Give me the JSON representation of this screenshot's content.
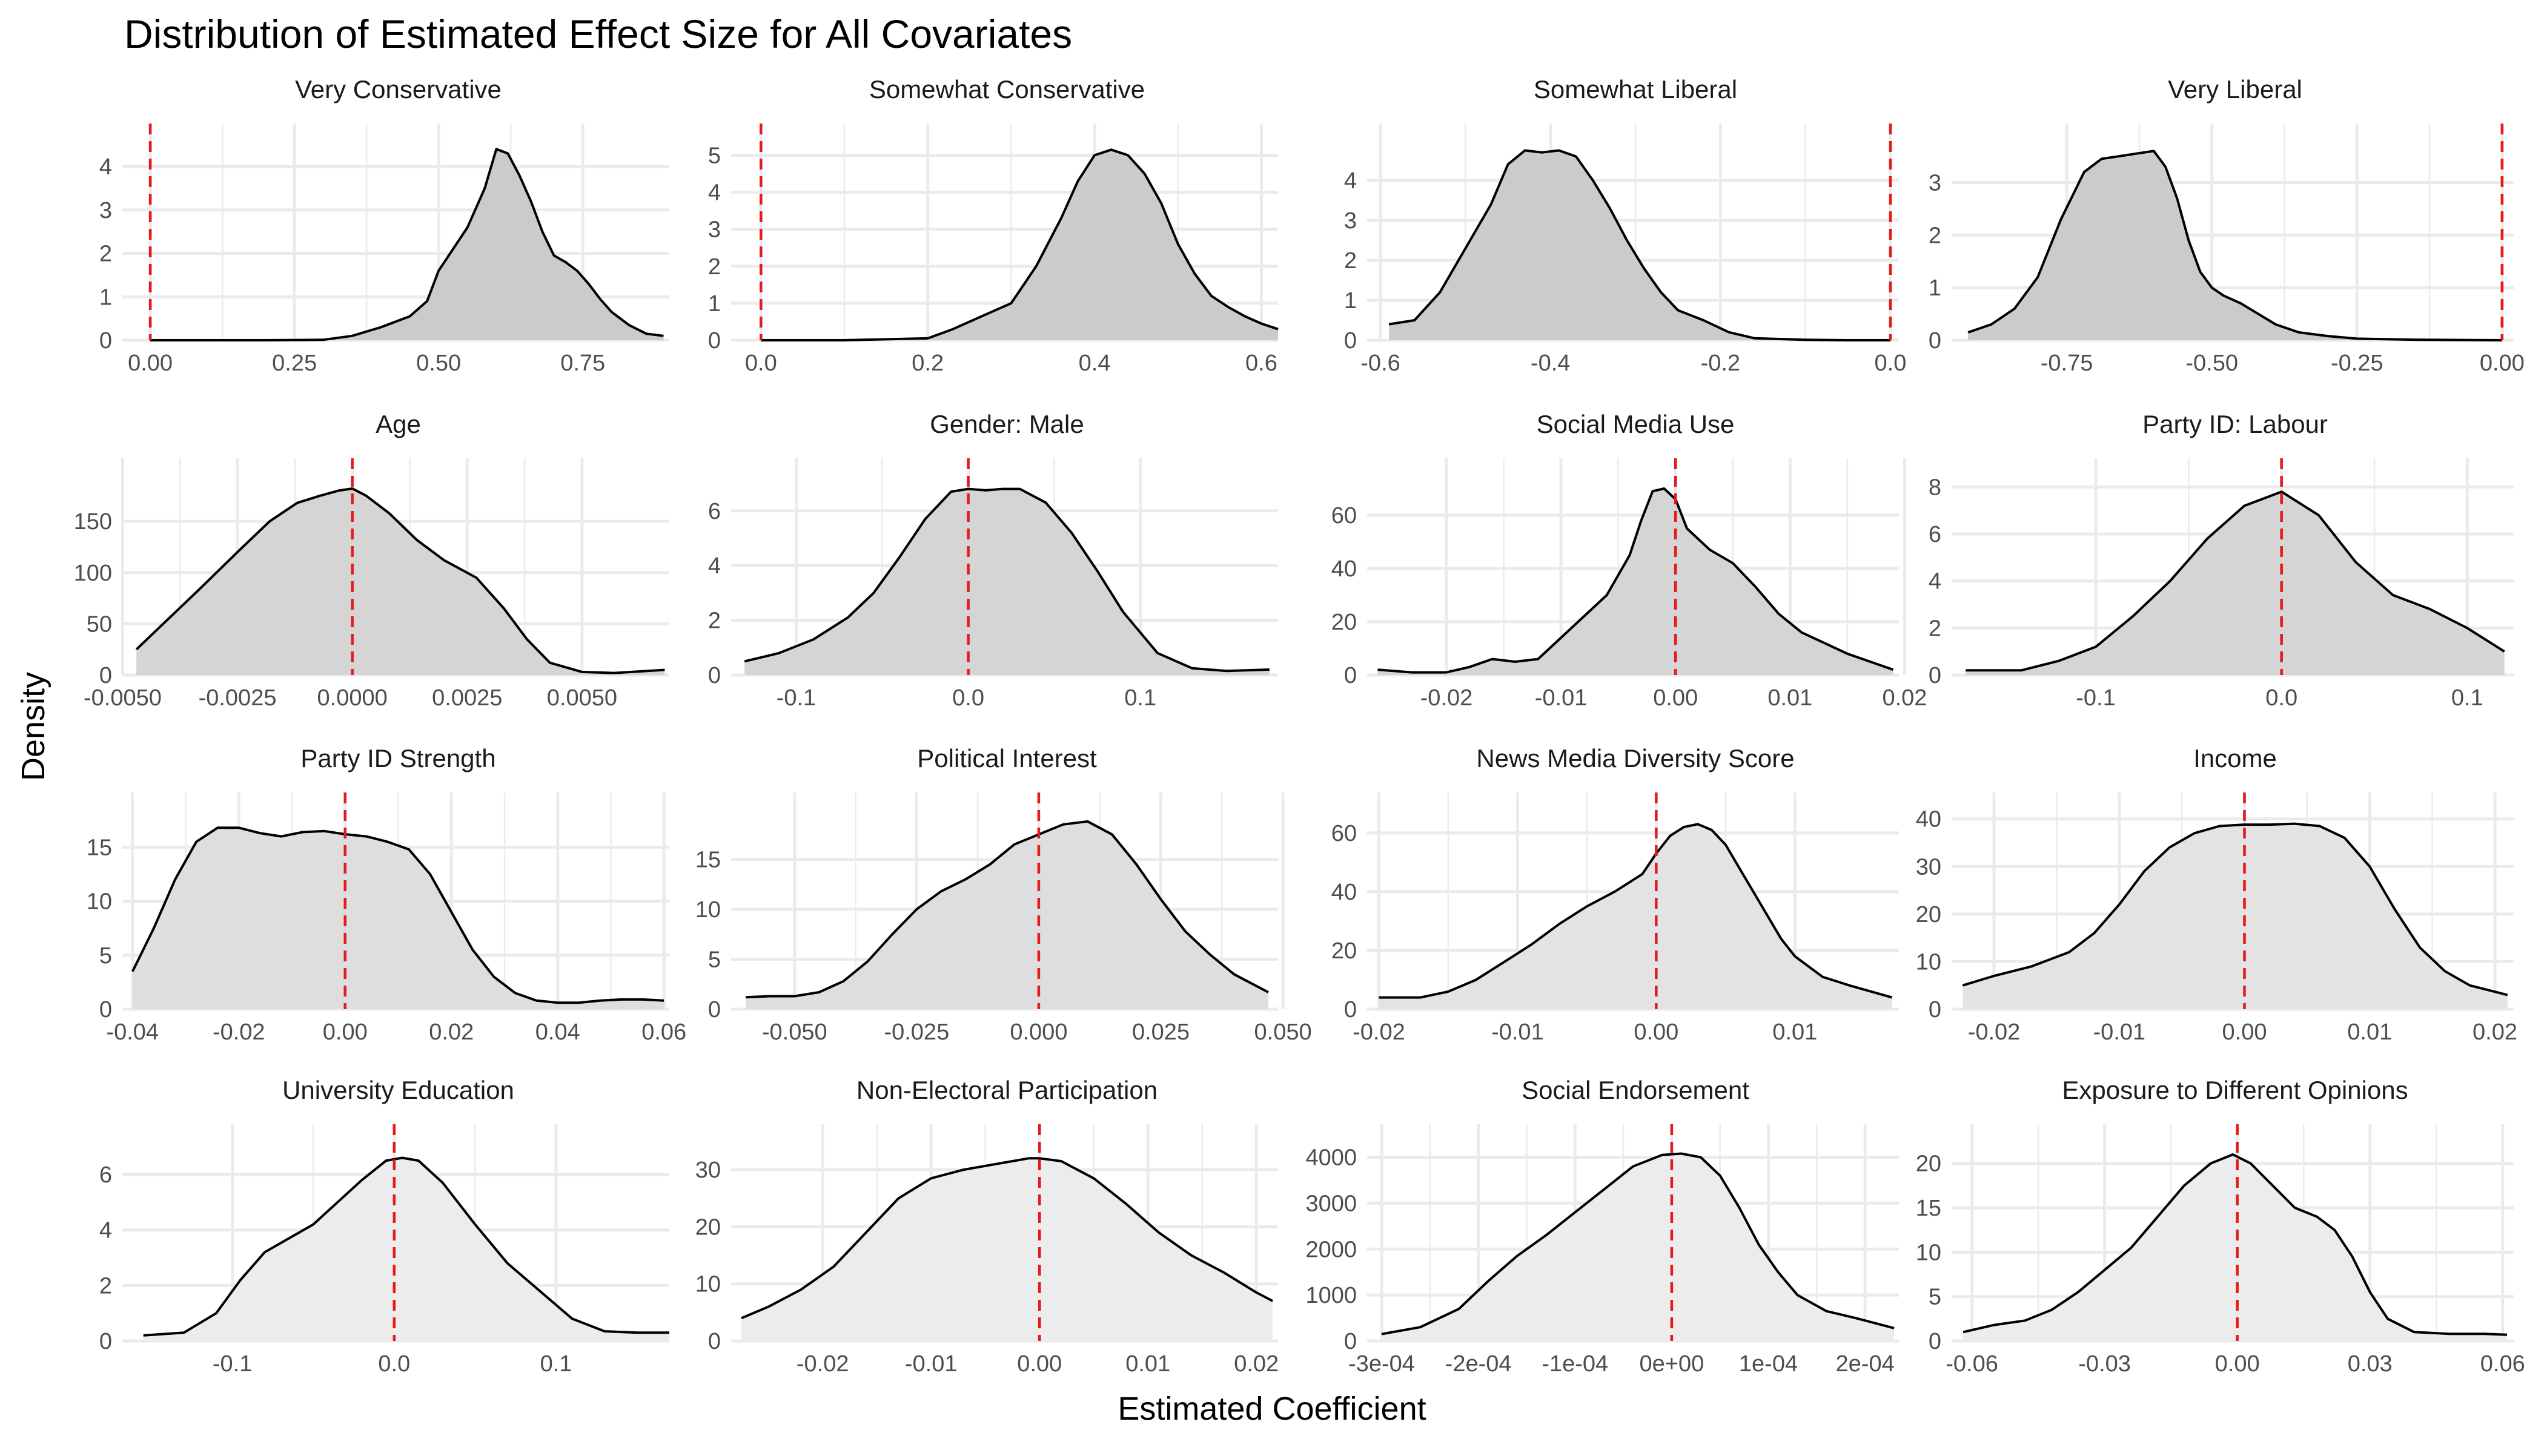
{
  "figure": {
    "title": "Distribution of Estimated Effect Size for All Covariates",
    "xlabel": "Estimated Coefficient",
    "ylabel": "Density",
    "colors": {
      "line": "#000000",
      "reference_line": "#e41a1c",
      "grid": "#ebebeb"
    }
  },
  "chart_data": [
    {
      "type": "area",
      "title": "Very Conservative",
      "fill": "#cbcbcb",
      "ref_x": 0,
      "xlim": [
        -0.04,
        0.9
      ],
      "ylim": [
        0,
        4.6
      ],
      "xticks": [
        0.0,
        0.25,
        0.5,
        0.75
      ],
      "xtick_labels": [
        "0.00",
        "0.25",
        "0.50",
        "0.75"
      ],
      "yticks": [
        0,
        1,
        2,
        3,
        4
      ],
      "ytick_labels": [
        "0",
        "1",
        "2",
        "3",
        "4"
      ],
      "x": [
        0.0,
        0.1,
        0.2,
        0.3,
        0.35,
        0.4,
        0.45,
        0.48,
        0.5,
        0.52,
        0.55,
        0.58,
        0.6,
        0.62,
        0.64,
        0.66,
        0.68,
        0.7,
        0.72,
        0.74,
        0.76,
        0.78,
        0.8,
        0.83,
        0.86,
        0.89
      ],
      "y": [
        0,
        0,
        0,
        0.01,
        0.1,
        0.3,
        0.55,
        0.9,
        1.6,
        2.0,
        2.6,
        3.5,
        4.4,
        4.3,
        3.8,
        3.2,
        2.5,
        1.95,
        1.8,
        1.6,
        1.3,
        0.95,
        0.65,
        0.35,
        0.15,
        0.1
      ]
    },
    {
      "type": "area",
      "title": "Somewhat Conservative",
      "fill": "#cbcbcb",
      "ref_x": 0,
      "xlim": [
        -0.03,
        0.62
      ],
      "ylim": [
        0,
        5.4
      ],
      "xticks": [
        0.0,
        0.2,
        0.4,
        0.6
      ],
      "xtick_labels": [
        "0.0",
        "0.2",
        "0.4",
        "0.6"
      ],
      "yticks": [
        0,
        1,
        2,
        3,
        4,
        5
      ],
      "ytick_labels": [
        "0",
        "1",
        "2",
        "3",
        "4",
        "5"
      ],
      "x": [
        0.0,
        0.1,
        0.2,
        0.23,
        0.26,
        0.3,
        0.33,
        0.36,
        0.38,
        0.4,
        0.42,
        0.44,
        0.46,
        0.48,
        0.5,
        0.52,
        0.54,
        0.56,
        0.58,
        0.6,
        0.62
      ],
      "y": [
        0,
        0,
        0.05,
        0.3,
        0.6,
        1.0,
        2.0,
        3.3,
        4.3,
        5.0,
        5.15,
        5.0,
        4.5,
        3.7,
        2.6,
        1.8,
        1.2,
        0.9,
        0.65,
        0.45,
        0.3
      ]
    },
    {
      "type": "area",
      "title": "Somewhat Liberal",
      "fill": "#cbcbcb",
      "ref_x": 0,
      "xlim": [
        -0.61,
        0.01
      ],
      "ylim": [
        0,
        5.0
      ],
      "xticks": [
        -0.6,
        -0.4,
        -0.2,
        0.0
      ],
      "xtick_labels": [
        "-0.6",
        "-0.4",
        "-0.2",
        "0.0"
      ],
      "yticks": [
        0,
        1,
        2,
        3,
        4
      ],
      "ytick_labels": [
        "0",
        "1",
        "2",
        "3",
        "4"
      ],
      "x": [
        -0.59,
        -0.56,
        -0.53,
        -0.5,
        -0.47,
        -0.45,
        -0.43,
        -0.41,
        -0.39,
        -0.37,
        -0.35,
        -0.33,
        -0.31,
        -0.29,
        -0.27,
        -0.25,
        -0.22,
        -0.19,
        -0.16,
        -0.1,
        -0.05,
        0.0
      ],
      "y": [
        0.4,
        0.5,
        1.2,
        2.3,
        3.4,
        4.4,
        4.75,
        4.7,
        4.75,
        4.6,
        4.0,
        3.3,
        2.5,
        1.8,
        1.2,
        0.75,
        0.5,
        0.2,
        0.05,
        0.01,
        0,
        0
      ]
    },
    {
      "type": "area",
      "title": "Very Liberal",
      "fill": "#cbcbcb",
      "ref_x": 0,
      "xlim": [
        -0.94,
        0.02
      ],
      "ylim": [
        0,
        3.8
      ],
      "xticks": [
        -0.75,
        -0.5,
        -0.25,
        0.0
      ],
      "xtick_labels": [
        "-0.75",
        "-0.50",
        "-0.25",
        "0.00"
      ],
      "yticks": [
        0,
        1,
        2,
        3
      ],
      "ytick_labels": [
        "0",
        "1",
        "2",
        "3"
      ],
      "x": [
        -0.92,
        -0.88,
        -0.84,
        -0.8,
        -0.76,
        -0.72,
        -0.69,
        -0.66,
        -0.63,
        -0.6,
        -0.58,
        -0.56,
        -0.54,
        -0.52,
        -0.5,
        -0.48,
        -0.45,
        -0.42,
        -0.39,
        -0.35,
        -0.3,
        -0.25,
        -0.15,
        0.0
      ],
      "y": [
        0.15,
        0.3,
        0.6,
        1.2,
        2.3,
        3.2,
        3.45,
        3.5,
        3.55,
        3.6,
        3.3,
        2.7,
        1.9,
        1.3,
        1.0,
        0.85,
        0.7,
        0.5,
        0.3,
        0.15,
        0.08,
        0.03,
        0.01,
        0
      ]
    },
    {
      "type": "area",
      "title": "Age",
      "fill": "#d5d5d5",
      "ref_x": 0,
      "xlim": [
        -0.0049,
        0.0069
      ],
      "ylim": [
        0,
        195
      ],
      "xticks": [
        -0.005,
        -0.0025,
        0.0,
        0.0025,
        0.005
      ],
      "xtick_labels": [
        "-0.0050",
        "-0.0025",
        "0.0000",
        "0.0025",
        "0.0050"
      ],
      "yticks": [
        0,
        50,
        100,
        150
      ],
      "ytick_labels": [
        "0",
        "50",
        "100",
        "150"
      ],
      "x": [
        -0.0047,
        -0.004,
        -0.0033,
        -0.0025,
        -0.0018,
        -0.0012,
        -0.0007,
        -0.0003,
        0.0,
        0.0003,
        0.0008,
        0.0014,
        0.002,
        0.0027,
        0.0033,
        0.0038,
        0.0043,
        0.005,
        0.0057,
        0.0068
      ],
      "y": [
        25,
        55,
        85,
        120,
        150,
        168,
        175,
        180,
        182,
        175,
        158,
        132,
        112,
        95,
        65,
        35,
        12,
        3,
        2,
        5
      ]
    },
    {
      "type": "area",
      "title": "Gender: Male",
      "fill": "#d5d5d5",
      "ref_x": 0,
      "xlim": [
        -0.135,
        0.18
      ],
      "ylim": [
        0,
        7.3
      ],
      "xticks": [
        -0.1,
        0.0,
        0.1
      ],
      "xtick_labels": [
        "-0.1",
        "0.0",
        "0.1"
      ],
      "yticks": [
        0,
        2,
        4,
        6
      ],
      "ytick_labels": [
        "0",
        "2",
        "4",
        "6"
      ],
      "x": [
        -0.13,
        -0.11,
        -0.09,
        -0.07,
        -0.055,
        -0.04,
        -0.025,
        -0.01,
        0.0,
        0.01,
        0.02,
        0.03,
        0.045,
        0.06,
        0.075,
        0.09,
        0.11,
        0.13,
        0.15,
        0.175
      ],
      "y": [
        0.5,
        0.8,
        1.3,
        2.1,
        3.0,
        4.3,
        5.7,
        6.7,
        6.8,
        6.75,
        6.8,
        6.8,
        6.3,
        5.2,
        3.8,
        2.3,
        0.8,
        0.25,
        0.15,
        0.2
      ]
    },
    {
      "type": "area",
      "title": "Social Media Use",
      "fill": "#d5d5d5",
      "ref_x": 0,
      "xlim": [
        -0.0265,
        0.0195
      ],
      "ylim": [
        0,
        75
      ],
      "xticks": [
        -0.02,
        -0.01,
        0.0,
        0.01,
        0.02
      ],
      "xtick_labels": [
        "-0.02",
        "-0.01",
        "0.00",
        "0.01",
        "0.02"
      ],
      "yticks": [
        0,
        20,
        40,
        60
      ],
      "ytick_labels": [
        "0",
        "20",
        "40",
        "60"
      ],
      "x": [
        -0.026,
        -0.023,
        -0.02,
        -0.018,
        -0.016,
        -0.014,
        -0.012,
        -0.01,
        -0.008,
        -0.006,
        -0.004,
        -0.003,
        -0.002,
        -0.001,
        0.0,
        0.001,
        0.003,
        0.005,
        0.007,
        0.009,
        0.011,
        0.013,
        0.015,
        0.017,
        0.019
      ],
      "y": [
        2,
        1,
        1,
        3,
        6,
        5,
        6,
        14,
        22,
        30,
        45,
        58,
        69,
        70,
        66,
        55,
        47,
        42,
        33,
        23,
        16,
        12,
        8,
        5,
        2
      ]
    },
    {
      "type": "area",
      "title": "Party ID: Labour",
      "fill": "#d5d5d5",
      "ref_x": 0,
      "xlim": [
        -0.175,
        0.125
      ],
      "ylim": [
        0,
        8.5
      ],
      "xticks": [
        -0.1,
        0.0,
        0.1
      ],
      "xtick_labels": [
        "-0.1",
        "0.0",
        "0.1"
      ],
      "yticks": [
        0,
        2,
        4,
        6,
        8
      ],
      "ytick_labels": [
        "0",
        "2",
        "4",
        "6",
        "8"
      ],
      "x": [
        -0.17,
        -0.14,
        -0.12,
        -0.1,
        -0.08,
        -0.06,
        -0.04,
        -0.02,
        0.0,
        0.02,
        0.04,
        0.06,
        0.08,
        0.1,
        0.12
      ],
      "y": [
        0.2,
        0.2,
        0.6,
        1.2,
        2.5,
        4.0,
        5.8,
        7.2,
        7.8,
        6.8,
        4.8,
        3.4,
        2.8,
        2.0,
        1.0
      ]
    },
    {
      "type": "area",
      "title": "Party ID Strength",
      "fill": "#dedede",
      "ref_x": 0,
      "xlim": [
        -0.041,
        0.061
      ],
      "ylim": [
        0,
        18.5
      ],
      "xticks": [
        -0.04,
        -0.02,
        0.0,
        0.02,
        0.04,
        0.06
      ],
      "xtick_labels": [
        "-0.04",
        "-0.02",
        "0.00",
        "0.02",
        "0.04",
        "0.06"
      ],
      "yticks": [
        0,
        5,
        10,
        15
      ],
      "ytick_labels": [
        "0",
        "5",
        "10",
        "15"
      ],
      "x": [
        -0.04,
        -0.036,
        -0.032,
        -0.028,
        -0.024,
        -0.02,
        -0.016,
        -0.012,
        -0.008,
        -0.004,
        0.0,
        0.004,
        0.008,
        0.012,
        0.016,
        0.02,
        0.024,
        0.028,
        0.032,
        0.036,
        0.04,
        0.044,
        0.048,
        0.052,
        0.056,
        0.06
      ],
      "y": [
        3.5,
        7.5,
        12,
        15.5,
        16.8,
        16.8,
        16.3,
        16.0,
        16.4,
        16.5,
        16.2,
        16.0,
        15.5,
        14.8,
        12.5,
        9,
        5.5,
        3,
        1.5,
        0.8,
        0.6,
        0.6,
        0.8,
        0.9,
        0.9,
        0.8
      ]
    },
    {
      "type": "area",
      "title": "Political Interest",
      "fill": "#dedede",
      "ref_x": 0,
      "xlim": [
        -0.062,
        0.049
      ],
      "ylim": [
        0,
        20
      ],
      "xticks": [
        -0.05,
        -0.025,
        0.0,
        0.025,
        0.05
      ],
      "xtick_labels": [
        "-0.050",
        "-0.025",
        "0.000",
        "0.025",
        "0.050"
      ],
      "yticks": [
        0,
        5,
        10,
        15
      ],
      "ytick_labels": [
        "0",
        "5",
        "10",
        "15"
      ],
      "x": [
        -0.06,
        -0.055,
        -0.05,
        -0.045,
        -0.04,
        -0.035,
        -0.03,
        -0.025,
        -0.02,
        -0.015,
        -0.01,
        -0.005,
        0.0,
        0.005,
        0.01,
        0.015,
        0.02,
        0.025,
        0.03,
        0.035,
        0.04,
        0.047
      ],
      "y": [
        1.2,
        1.3,
        1.3,
        1.7,
        2.8,
        4.8,
        7.5,
        10,
        11.8,
        13,
        14.5,
        16.5,
        17.5,
        18.5,
        18.8,
        17.5,
        14.5,
        11,
        7.8,
        5.5,
        3.5,
        1.7
      ]
    },
    {
      "type": "area",
      "title": "News Media Diversity Score",
      "fill": "#e3e3e3",
      "ref_x": 0,
      "xlim": [
        -0.0205,
        0.0175
      ],
      "ylim": [
        0,
        68
      ],
      "xticks": [
        -0.02,
        -0.01,
        0.0,
        0.01
      ],
      "xtick_labels": [
        "-0.02",
        "-0.01",
        "0.00",
        "0.01"
      ],
      "yticks": [
        0,
        20,
        40,
        60
      ],
      "ytick_labels": [
        "0",
        "20",
        "40",
        "60"
      ],
      "x": [
        -0.02,
        -0.017,
        -0.015,
        -0.013,
        -0.011,
        -0.009,
        -0.007,
        -0.005,
        -0.003,
        -0.001,
        0.0,
        0.001,
        0.002,
        0.003,
        0.004,
        0.005,
        0.006,
        0.007,
        0.008,
        0.009,
        0.01,
        0.012,
        0.014,
        0.017
      ],
      "y": [
        4,
        4,
        6,
        10,
        16,
        22,
        29,
        35,
        40,
        46,
        53,
        59,
        62,
        63,
        61,
        56,
        48,
        40,
        32,
        24,
        18,
        11,
        8,
        4
      ]
    },
    {
      "type": "area",
      "title": "Income",
      "fill": "#e3e3e3",
      "ref_x": 0,
      "xlim": [
        -0.023,
        0.0215
      ],
      "ylim": [
        0,
        42
      ],
      "xticks": [
        -0.02,
        -0.01,
        0.0,
        0.01,
        0.02
      ],
      "xtick_labels": [
        "-0.02",
        "-0.01",
        "0.00",
        "0.01",
        "0.02"
      ],
      "yticks": [
        0,
        10,
        20,
        30,
        40
      ],
      "ytick_labels": [
        "0",
        "10",
        "20",
        "30",
        "40"
      ],
      "x": [
        -0.0225,
        -0.02,
        -0.017,
        -0.014,
        -0.012,
        -0.01,
        -0.008,
        -0.006,
        -0.004,
        -0.002,
        0.0,
        0.002,
        0.004,
        0.006,
        0.008,
        0.01,
        0.012,
        0.014,
        0.016,
        0.018,
        0.021
      ],
      "y": [
        5,
        7,
        9,
        12,
        16,
        22,
        29,
        34,
        37,
        38.5,
        38.8,
        38.8,
        39,
        38.5,
        36,
        30,
        21,
        13,
        8,
        5,
        3
      ]
    },
    {
      "type": "area",
      "title": "University Education",
      "fill": "#ececec",
      "ref_x": 0,
      "xlim": [
        -0.165,
        0.17
      ],
      "ylim": [
        0,
        7.2
      ],
      "xticks": [
        -0.1,
        0.0,
        0.1
      ],
      "xtick_labels": [
        "-0.1",
        "0.0",
        "0.1"
      ],
      "yticks": [
        0,
        2,
        4,
        6
      ],
      "ytick_labels": [
        "0",
        "2",
        "4",
        "6"
      ],
      "x": [
        -0.155,
        -0.13,
        -0.11,
        -0.095,
        -0.08,
        -0.065,
        -0.05,
        -0.035,
        -0.02,
        -0.005,
        0.005,
        0.015,
        0.03,
        0.05,
        0.07,
        0.09,
        0.11,
        0.13,
        0.15,
        0.17
      ],
      "y": [
        0.2,
        0.3,
        1.0,
        2.2,
        3.2,
        3.7,
        4.2,
        5.0,
        5.8,
        6.5,
        6.6,
        6.5,
        5.7,
        4.2,
        2.8,
        1.8,
        0.8,
        0.35,
        0.3,
        0.3
      ]
    },
    {
      "type": "area",
      "title": "Non-Electoral Participation",
      "fill": "#ececec",
      "ref_x": 0,
      "xlim": [
        -0.028,
        0.022
      ],
      "ylim": [
        0,
        35
      ],
      "xticks": [
        -0.02,
        -0.01,
        0.0,
        0.01,
        0.02
      ],
      "xtick_labels": [
        "-0.02",
        "-0.01",
        "0.00",
        "0.01",
        "0.02"
      ],
      "yticks": [
        0,
        10,
        20,
        30
      ],
      "ytick_labels": [
        "0",
        "10",
        "20",
        "30"
      ],
      "x": [
        -0.0275,
        -0.025,
        -0.022,
        -0.019,
        -0.016,
        -0.013,
        -0.01,
        -0.007,
        -0.004,
        -0.001,
        0.0,
        0.002,
        0.005,
        0.008,
        0.011,
        0.014,
        0.017,
        0.02,
        0.0215
      ],
      "y": [
        4,
        6,
        9,
        13,
        19,
        25,
        28.5,
        30,
        31,
        32,
        32,
        31.5,
        28.5,
        24,
        19,
        15,
        12,
        8.5,
        7
      ]
    },
    {
      "type": "area",
      "title": "Social Endorsement",
      "fill": "#ececec",
      "ref_x": 0,
      "xlim": [
        -0.00031,
        0.000235
      ],
      "ylim": [
        0,
        4350
      ],
      "xticks": [
        -0.0003,
        -0.0002,
        -0.0001,
        0.0,
        0.0001,
        0.0002
      ],
      "xtick_labels": [
        "-3e-04",
        "-2e-04",
        "-1e-04",
        "0e+00",
        "1e-04",
        "2e-04"
      ],
      "yticks": [
        0,
        1000,
        2000,
        3000,
        4000
      ],
      "ytick_labels": [
        "0",
        "1000",
        "2000",
        "3000",
        "4000"
      ],
      "x": [
        -0.0003,
        -0.00026,
        -0.00022,
        -0.00019,
        -0.00016,
        -0.00013,
        -0.0001,
        -7e-05,
        -4e-05,
        -1e-05,
        1e-05,
        3e-05,
        5e-05,
        7e-05,
        9e-05,
        0.00011,
        0.00013,
        0.00016,
        0.00019,
        0.00023
      ],
      "y": [
        150,
        300,
        700,
        1300,
        1850,
        2300,
        2800,
        3300,
        3800,
        4050,
        4080,
        4000,
        3600,
        2900,
        2100,
        1500,
        1000,
        650,
        500,
        280
      ]
    },
    {
      "type": "area",
      "title": "Exposure to Different Opinions",
      "fill": "#ececec",
      "ref_x": 0,
      "xlim": [
        -0.0635,
        0.0625
      ],
      "ylim": [
        0,
        22.5
      ],
      "xticks": [
        -0.06,
        -0.03,
        0.0,
        0.03,
        0.06
      ],
      "xtick_labels": [
        "-0.06",
        "-0.03",
        "0.00",
        "0.03",
        "0.06"
      ],
      "yticks": [
        0,
        5,
        10,
        15,
        20
      ],
      "ytick_labels": [
        "0",
        "5",
        "10",
        "15",
        "20"
      ],
      "x": [
        -0.062,
        -0.055,
        -0.048,
        -0.042,
        -0.036,
        -0.03,
        -0.024,
        -0.018,
        -0.012,
        -0.006,
        -0.001,
        0.003,
        0.008,
        0.013,
        0.018,
        0.022,
        0.026,
        0.03,
        0.034,
        0.04,
        0.048,
        0.056,
        0.061
      ],
      "y": [
        1.0,
        1.8,
        2.3,
        3.5,
        5.5,
        8,
        10.5,
        14,
        17.5,
        20,
        21,
        20,
        17.5,
        15,
        14,
        12.5,
        9.5,
        5.5,
        2.5,
        1.0,
        0.8,
        0.8,
        0.7
      ]
    }
  ]
}
